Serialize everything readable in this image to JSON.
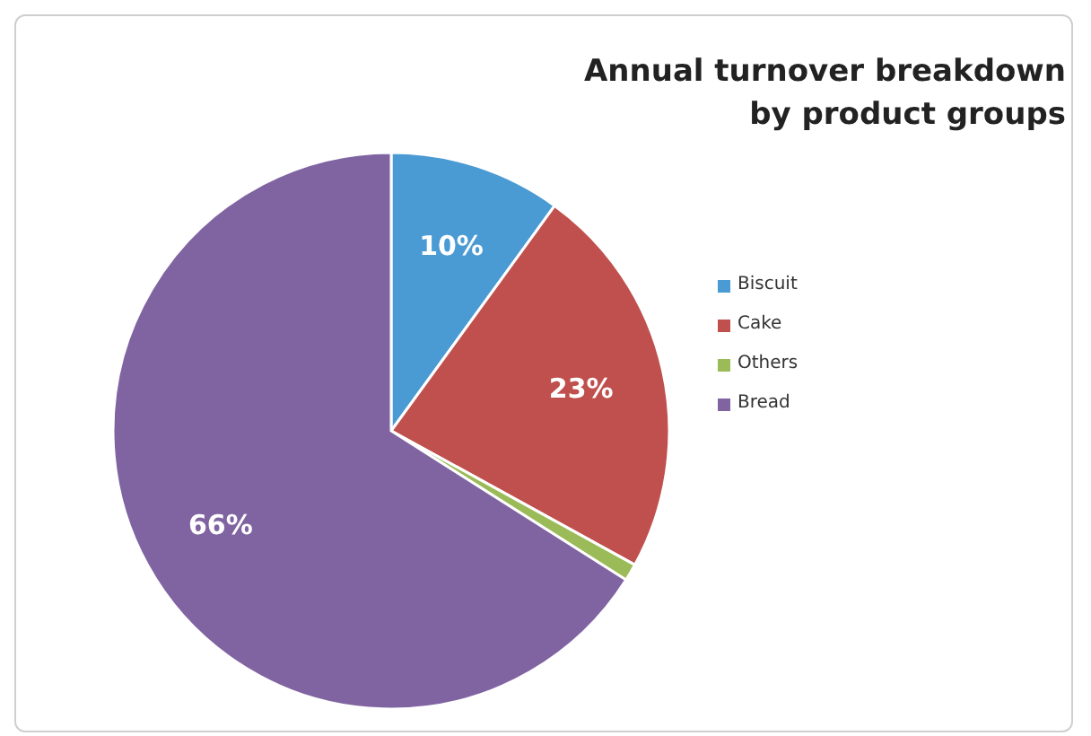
{
  "chart_data": {
    "type": "pie",
    "title": "Annual turnover breakdown\nby product groups",
    "categories": [
      "Biscuit",
      "Cake",
      "Others",
      "Bread"
    ],
    "values": [
      10,
      23,
      1,
      66
    ],
    "value_labels": [
      "10%",
      "23%",
      null,
      "66%"
    ],
    "colors": [
      "#4a9ad4",
      "#c0504d",
      "#9bbb59",
      "#8064a2"
    ],
    "legend": "right"
  }
}
